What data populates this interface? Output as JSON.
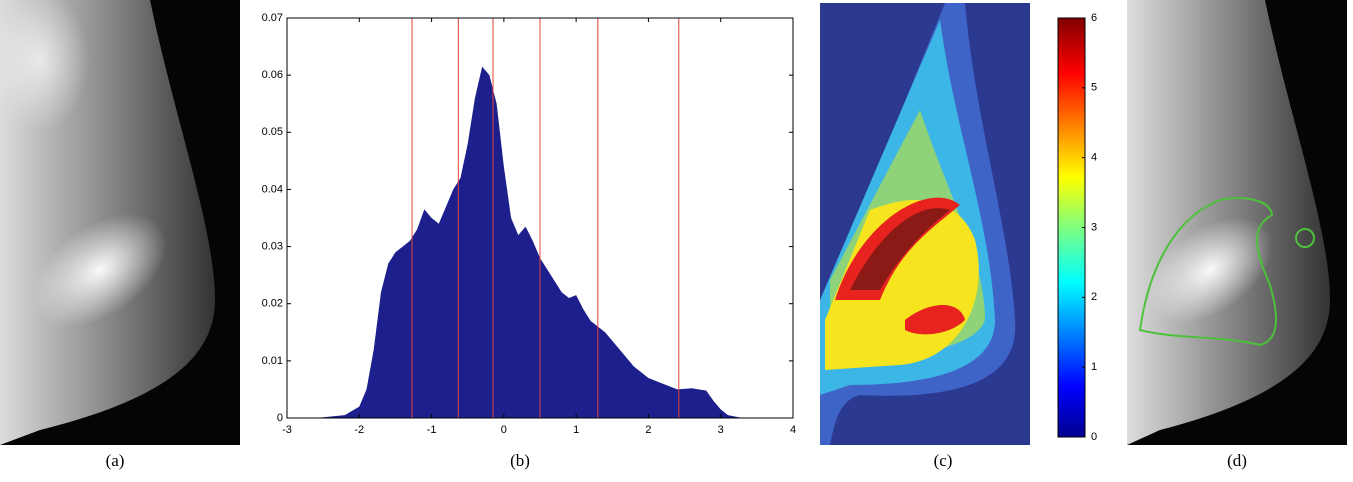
{
  "panels": [
    "(a)",
    "(b)",
    "(c)",
    "(d)"
  ],
  "chart_data": [
    {
      "type": "area",
      "color": "#1c1f8c",
      "threshold_color": "#e0453a",
      "x": [
        -2.6,
        -2.2,
        -2.0,
        -1.9,
        -1.8,
        -1.7,
        -1.6,
        -1.5,
        -1.4,
        -1.3,
        -1.2,
        -1.1,
        -1.0,
        -0.9,
        -0.8,
        -0.7,
        -0.6,
        -0.5,
        -0.4,
        -0.3,
        -0.2,
        -0.1,
        0,
        0.1,
        0.2,
        0.3,
        0.4,
        0.5,
        0.6,
        0.7,
        0.8,
        0.9,
        1.0,
        1.1,
        1.2,
        1.4,
        1.6,
        1.8,
        2.0,
        2.2,
        2.4,
        2.6,
        2.8,
        2.9,
        3.0,
        3.1,
        3.3
      ],
      "values": [
        0,
        0.0005,
        0.002,
        0.005,
        0.012,
        0.022,
        0.027,
        0.029,
        0.03,
        0.031,
        0.033,
        0.0365,
        0.035,
        0.034,
        0.037,
        0.04,
        0.042,
        0.048,
        0.056,
        0.0615,
        0.06,
        0.055,
        0.044,
        0.035,
        0.032,
        0.0335,
        0.031,
        0.028,
        0.026,
        0.024,
        0.022,
        0.021,
        0.0215,
        0.019,
        0.017,
        0.015,
        0.012,
        0.009,
        0.007,
        0.006,
        0.005,
        0.0052,
        0.0048,
        0.003,
        0.0015,
        0.0005,
        0
      ],
      "thresholds": [
        -1.27,
        -0.63,
        -0.15,
        0.5,
        1.3,
        2.42
      ],
      "xlim": [
        -3,
        4
      ],
      "xticks": [
        -3,
        -2,
        -1,
        0,
        1,
        2,
        3,
        4
      ],
      "ylim": [
        0,
        0.07
      ],
      "yticks": [
        0,
        0.01,
        0.02,
        0.03,
        0.04,
        0.05,
        0.06,
        0.07
      ]
    },
    {
      "type": "colorbar",
      "ylim": [
        0,
        6
      ],
      "yticks": [
        0,
        1,
        2,
        3,
        4,
        5,
        6
      ]
    }
  ]
}
